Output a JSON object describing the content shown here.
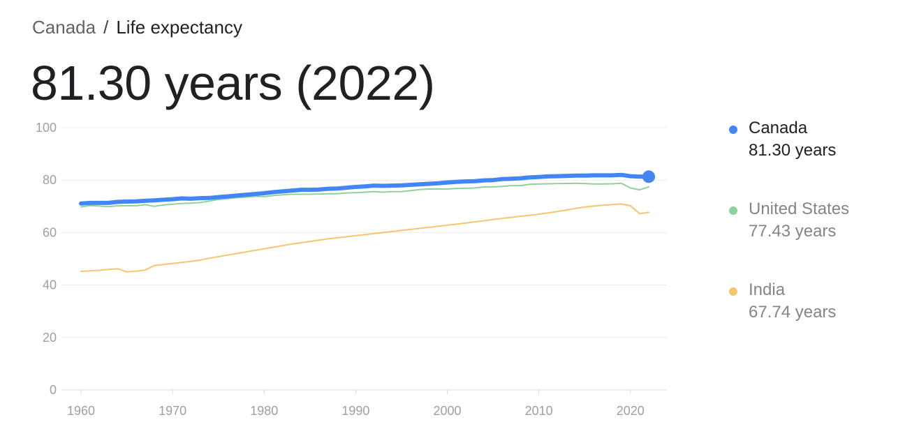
{
  "breadcrumb": {
    "root": "Canada",
    "separator": "/",
    "current": "Life expectancy"
  },
  "headline": "81.30 years (2022)",
  "colors": {
    "canada": "#4285f4",
    "united_states": "#8fd19e",
    "india": "#f6c56f",
    "grid": "#ececec",
    "axis_text": "#9aa0a6"
  },
  "legend": [
    {
      "name": "Canada",
      "value": "81.30 years",
      "color": "#4285f4",
      "state": "active"
    },
    {
      "name": "United States",
      "value": "77.43 years",
      "color": "#8fd19e",
      "state": "muted"
    },
    {
      "name": "India",
      "value": "67.74 years",
      "color": "#f6c56f",
      "state": "muted"
    }
  ],
  "chart_data": {
    "type": "line",
    "title": "Life expectancy",
    "xlabel": "",
    "ylabel": "",
    "xlim": [
      1960,
      2022
    ],
    "ylim": [
      0,
      100
    ],
    "y_ticks": [
      0,
      20,
      40,
      60,
      80,
      100
    ],
    "x_ticks": [
      1960,
      1970,
      1980,
      1990,
      2000,
      2010,
      2020
    ],
    "grid": true,
    "legend_position": "right",
    "x": [
      1960,
      1961,
      1962,
      1963,
      1964,
      1965,
      1966,
      1967,
      1968,
      1969,
      1970,
      1971,
      1972,
      1973,
      1974,
      1975,
      1976,
      1977,
      1978,
      1979,
      1980,
      1981,
      1982,
      1983,
      1984,
      1985,
      1986,
      1987,
      1988,
      1989,
      1990,
      1991,
      1992,
      1993,
      1994,
      1995,
      1996,
      1997,
      1998,
      1999,
      2000,
      2001,
      2002,
      2003,
      2004,
      2005,
      2006,
      2007,
      2008,
      2009,
      2010,
      2011,
      2012,
      2013,
      2014,
      2015,
      2016,
      2017,
      2018,
      2019,
      2020,
      2021,
      2022
    ],
    "series": [
      {
        "name": "United States",
        "values": [
          69.8,
          70.3,
          70.1,
          69.9,
          70.2,
          70.2,
          70.2,
          70.6,
          70.0,
          70.5,
          70.8,
          71.1,
          71.2,
          71.4,
          72.0,
          72.6,
          72.9,
          73.3,
          73.5,
          73.8,
          73.7,
          74.1,
          74.4,
          74.6,
          74.6,
          74.6,
          74.7,
          74.8,
          74.8,
          75.1,
          75.2,
          75.4,
          75.6,
          75.4,
          75.6,
          75.6,
          76.0,
          76.4,
          76.6,
          76.6,
          76.6,
          76.8,
          76.9,
          77.0,
          77.4,
          77.4,
          77.6,
          77.9,
          77.9,
          78.4,
          78.5,
          78.6,
          78.7,
          78.7,
          78.8,
          78.7,
          78.5,
          78.5,
          78.6,
          78.8,
          77.0,
          76.3,
          77.4
        ]
      },
      {
        "name": "India",
        "values": [
          45.2,
          45.4,
          45.6,
          45.9,
          46.2,
          45.0,
          45.3,
          45.7,
          47.4,
          47.8,
          48.2,
          48.6,
          49.0,
          49.5,
          50.2,
          50.8,
          51.4,
          52.0,
          52.6,
          53.2,
          53.8,
          54.4,
          55.0,
          55.6,
          56.1,
          56.6,
          57.1,
          57.6,
          58.0,
          58.4,
          58.8,
          59.2,
          59.6,
          60.0,
          60.4,
          60.8,
          61.2,
          61.6,
          62.0,
          62.4,
          62.8,
          63.2,
          63.6,
          64.1,
          64.5,
          65.0,
          65.4,
          65.8,
          66.2,
          66.6,
          67.0,
          67.5,
          68.0,
          68.6,
          69.2,
          69.7,
          70.1,
          70.4,
          70.7,
          70.9,
          70.2,
          67.2,
          67.7
        ]
      },
      {
        "name": "Canada",
        "values": [
          71.1,
          71.3,
          71.3,
          71.3,
          71.7,
          71.8,
          71.9,
          72.1,
          72.3,
          72.5,
          72.7,
          73.0,
          72.9,
          73.1,
          73.2,
          73.5,
          73.8,
          74.1,
          74.4,
          74.7,
          75.0,
          75.4,
          75.7,
          76.0,
          76.3,
          76.3,
          76.4,
          76.7,
          76.8,
          77.1,
          77.4,
          77.6,
          77.9,
          77.8,
          77.9,
          78.0,
          78.2,
          78.4,
          78.6,
          78.8,
          79.1,
          79.3,
          79.5,
          79.6,
          79.9,
          80.0,
          80.4,
          80.5,
          80.7,
          81.0,
          81.2,
          81.4,
          81.5,
          81.6,
          81.7,
          81.7,
          81.8,
          81.8,
          81.8,
          82.0,
          81.5,
          81.3,
          81.3
        ]
      }
    ]
  }
}
